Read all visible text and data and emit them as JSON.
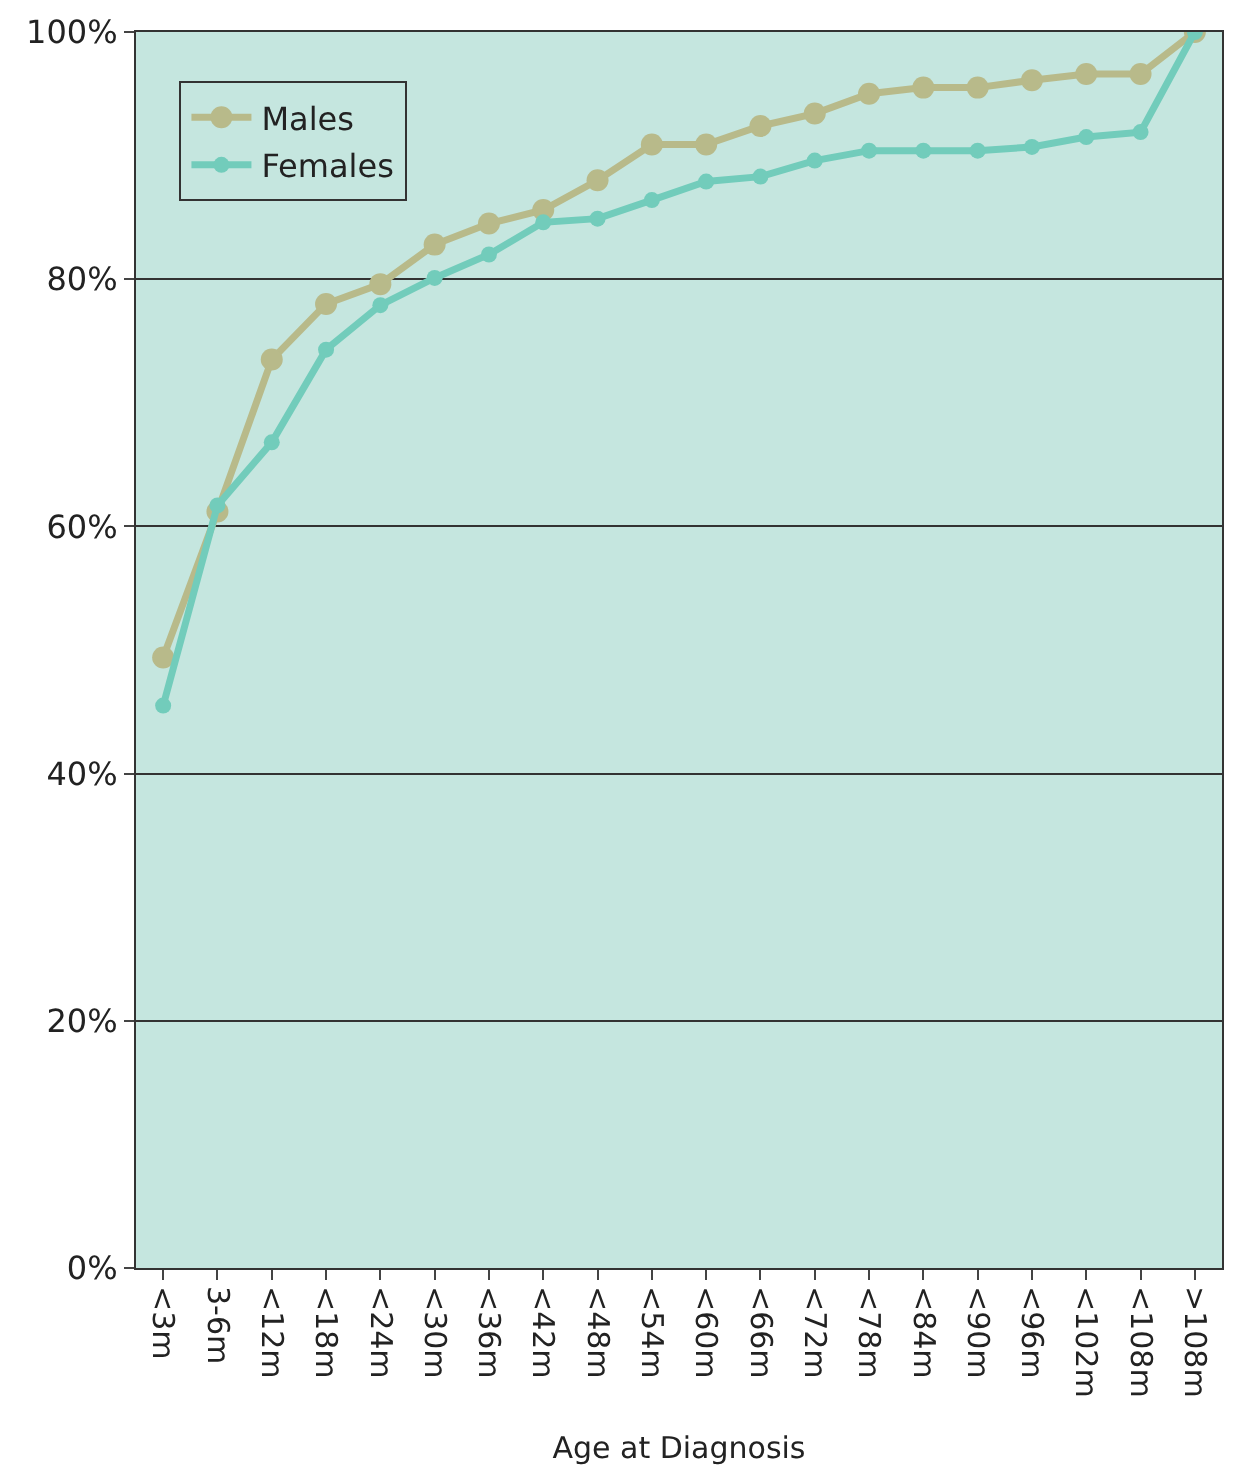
{
  "chart_data": {
    "type": "line",
    "xlabel": "Age at Diagnosis",
    "categories": [
      "<3m",
      "3-6m",
      "<12m",
      "<18m",
      "<24m",
      "<30m",
      "<36m",
      "<42m",
      "<48m",
      "<54m",
      "<60m",
      "<66m",
      "<72m",
      "<78m",
      "<84m",
      "<90m",
      "<96m",
      "<102m",
      "<108m",
      ">108m"
    ],
    "series": [
      {
        "name": "Males",
        "color": "#b8ba8a",
        "values": [
          49.4,
          61.2,
          73.5,
          78.0,
          79.6,
          82.8,
          84.5,
          85.6,
          88.0,
          90.9,
          90.9,
          92.4,
          93.4,
          95.0,
          95.5,
          95.5,
          96.1,
          96.6,
          96.6,
          100
        ]
      },
      {
        "name": "Females",
        "color": "#72ccbb",
        "values": [
          45.5,
          61.7,
          66.8,
          74.3,
          77.9,
          80.1,
          82.0,
          84.6,
          84.9,
          86.4,
          87.9,
          88.3,
          89.6,
          90.4,
          90.4,
          90.4,
          90.7,
          91.5,
          91.9,
          100
        ]
      }
    ],
    "ylim": [
      0,
      100
    ],
    "yticks": [
      {
        "value": 0,
        "label": "0%"
      },
      {
        "value": 20,
        "label": "20%"
      },
      {
        "value": 40,
        "label": "40%"
      },
      {
        "value": 60,
        "label": "60%"
      },
      {
        "value": 80,
        "label": "80%"
      },
      {
        "value": 100,
        "label": "100%"
      }
    ],
    "grid": "y",
    "legend": "top left",
    "marker": "circle",
    "line_style": "solid"
  }
}
